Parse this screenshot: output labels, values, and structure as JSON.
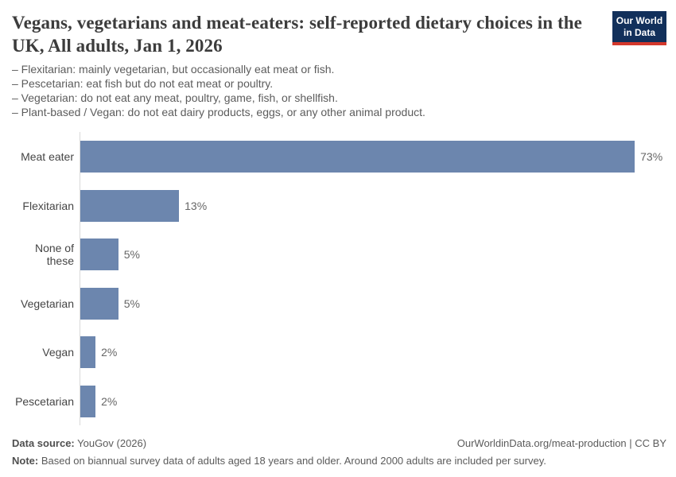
{
  "header": {
    "title": "Vegans, vegetarians and meat-eaters: self-reported dietary choices in the UK, All adults, Jan 1, 2026",
    "logo": {
      "line1": "Our World",
      "line2": "in Data"
    }
  },
  "subtitle_lines": [
    "– Flexitarian: mainly vegetarian, but occasionally eat meat or fish.",
    "– Pescetarian: eat fish but do not eat meat or poultry.",
    "– Vegetarian: do not eat any meat, poultry, game, fish, or shellfish.",
    "– Plant-based / Vegan: do not eat dairy products, eggs, or any other animal product."
  ],
  "chart_data": {
    "type": "bar",
    "orientation": "horizontal",
    "title": "Vegans, vegetarians and meat-eaters: self-reported dietary choices in the UK, All adults, Jan 1, 2026",
    "categories": [
      "Meat eater",
      "Flexitarian",
      "None of these",
      "Vegetarian",
      "Vegan",
      "Pescetarian"
    ],
    "values": [
      73,
      13,
      5,
      5,
      2,
      2
    ],
    "value_labels": [
      "73%",
      "13%",
      "5%",
      "5%",
      "2%",
      "2%"
    ],
    "unit": "%",
    "xlim": [
      0,
      77
    ],
    "grid": false,
    "legend": "none",
    "bar_color": "#6c86ae",
    "axis_line_color": "#d9d9d9"
  },
  "footer": {
    "source_label": "Data source:",
    "source_text": " YouGov (2026)",
    "citation": "OurWorldinData.org/meat-production | CC BY",
    "note_label": "Note:",
    "note_text": " Based on biannual survey data of adults aged 18 years and older. Around 2000 adults are included per survey."
  },
  "colors": {
    "bar": "#6c86ae",
    "title_text": "#3c3c3c",
    "subtitle_text": "#5c5c5c",
    "logo_background": "#12305b",
    "logo_accent": "#d4382c"
  }
}
